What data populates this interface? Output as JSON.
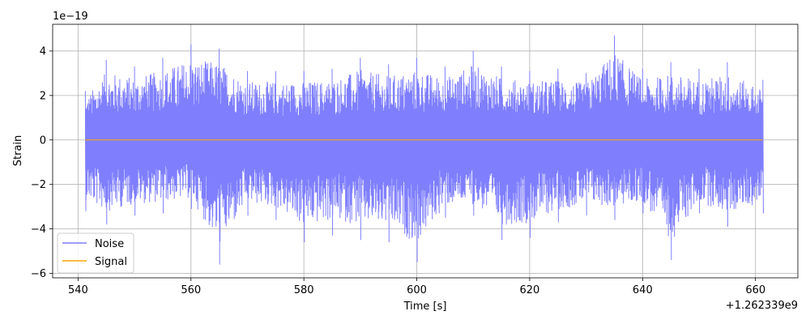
{
  "chart_data": {
    "type": "line",
    "title": "",
    "xlabel": "Time [s]",
    "ylabel": "Strain",
    "x_offset_label": "+1.262339e9",
    "y_scale_label": "1e−19",
    "xlim": [
      535.5,
      667.5
    ],
    "ylim": [
      -6.2,
      5.2
    ],
    "x_ticks": [
      540,
      560,
      580,
      600,
      620,
      640,
      660
    ],
    "x_tick_labels": [
      "540",
      "560",
      "580",
      "600",
      "620",
      "640",
      "660"
    ],
    "y_ticks": [
      -6,
      -4,
      -2,
      0,
      2,
      4
    ],
    "y_tick_labels": [
      "−6",
      "−4",
      "−2",
      "0",
      "2",
      "4"
    ],
    "grid": true,
    "legend": {
      "position": "lower-left",
      "entries": [
        "Noise",
        "Signal"
      ]
    },
    "colors": {
      "noise": "#7f7ffe",
      "signal": "#ffa500",
      "grid": "#b0b0b0"
    },
    "series": [
      {
        "name": "Noise",
        "x_range": [
          541.3,
          661.3
        ],
        "summary": "dense noise, approx. ±2 typical amplitude",
        "envelope_x": [
          541.3,
          545,
          550,
          555,
          560,
          565,
          570,
          575,
          580,
          585,
          590,
          595,
          600,
          605,
          610,
          615,
          620,
          625,
          630,
          635,
          640,
          645,
          650,
          655,
          661.3
        ],
        "envelope_max": [
          2.2,
          3.6,
          3.3,
          3.7,
          4.3,
          4.1,
          3.1,
          3.1,
          3.1,
          3.2,
          3.7,
          3.4,
          3.7,
          3.3,
          4.0,
          3.3,
          3.1,
          3.2,
          3.0,
          4.7,
          3.2,
          3.5,
          3.2,
          3.5,
          2.7
        ],
        "envelope_min": [
          -3.2,
          -3.8,
          -3.4,
          -3.3,
          -3.1,
          -5.6,
          -3.4,
          -3.6,
          -4.6,
          -4.3,
          -4.5,
          -4.6,
          -5.5,
          -3.5,
          -3.4,
          -4.5,
          -4.4,
          -3.7,
          -3.4,
          -3.6,
          -3.3,
          -5.4,
          -3.3,
          -3.9,
          -3.3
        ]
      },
      {
        "name": "Signal",
        "x": [
          541.3,
          661.3
        ],
        "y": [
          0,
          0
        ]
      }
    ]
  }
}
